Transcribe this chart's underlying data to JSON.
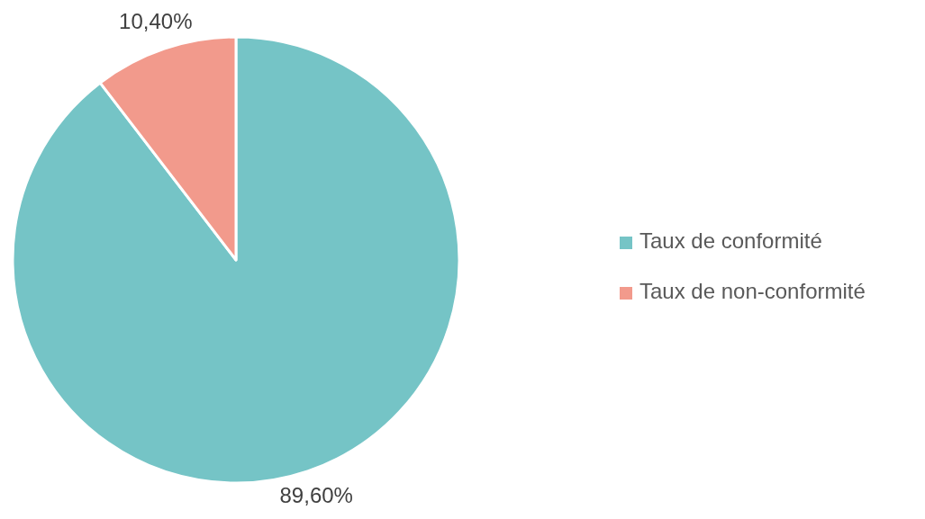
{
  "chart_data": {
    "type": "pie",
    "categories": [
      "Taux de conformité",
      "Taux de non-conformité"
    ],
    "values": [
      89.6,
      10.4
    ],
    "colors": [
      "#75c4c6",
      "#f29a8c"
    ],
    "value_labels": [
      "89,60%",
      "10,40%"
    ],
    "legend": "right"
  }
}
